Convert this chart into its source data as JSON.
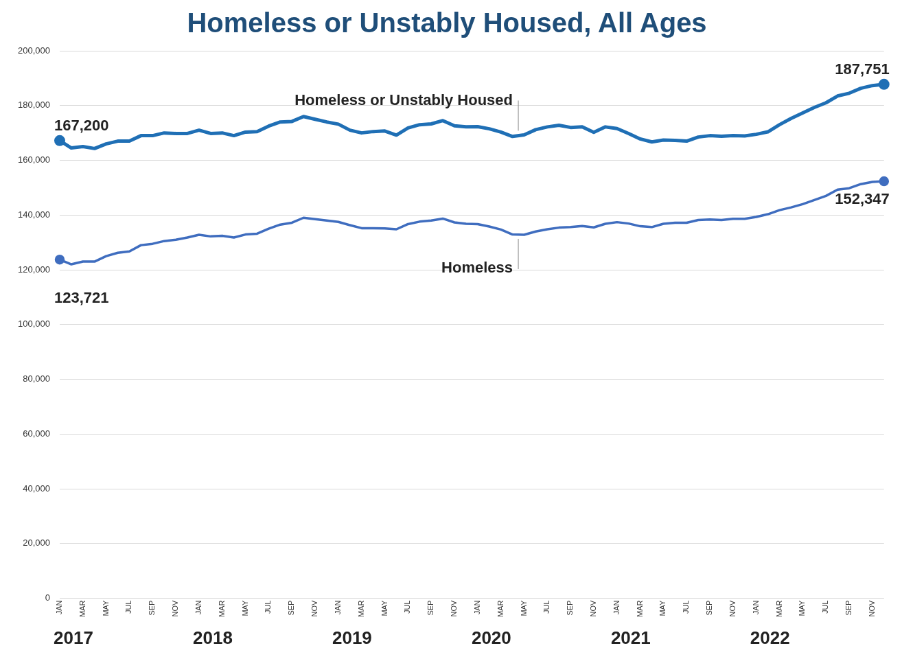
{
  "chart_data": {
    "type": "line",
    "title": "Homeless or Unstably Housed, All Ages",
    "categories": [
      "JAN",
      null,
      "MAR",
      null,
      "MAY",
      null,
      "JUL",
      null,
      "SEP",
      null,
      "NOV",
      null,
      "JAN",
      null,
      "MAR",
      null,
      "MAY",
      null,
      "JUL",
      null,
      "SEP",
      null,
      "NOV",
      null,
      "JAN",
      null,
      "MAR",
      null,
      "MAY",
      null,
      "JUL",
      null,
      "SEP",
      null,
      "NOV",
      null,
      "JAN",
      null,
      "MAR",
      null,
      "MAY",
      null,
      "JUL",
      null,
      "SEP",
      null,
      "NOV",
      null,
      "JAN",
      null,
      "MAR",
      null,
      "MAY",
      null,
      "JUL",
      null,
      "SEP",
      null,
      "NOV",
      null,
      "JAN",
      null,
      "MAR",
      null,
      "MAY",
      null,
      "JUL",
      null,
      "SEP",
      null,
      "NOV",
      null
    ],
    "series": [
      {
        "name": "Homeless or Unstably Housed",
        "color": "#1f6fb5",
        "values": [
          167200,
          164500,
          165000,
          164300,
          166000,
          167000,
          167000,
          169000,
          169000,
          170000,
          169800,
          169800,
          171000,
          169800,
          170000,
          169000,
          170300,
          170500,
          172500,
          174000,
          174200,
          176000,
          175000,
          174000,
          173200,
          171000,
          170000,
          170500,
          170700,
          169200,
          171800,
          173000,
          173300,
          174500,
          172600,
          172200,
          172300,
          171500,
          170300,
          168700,
          169300,
          171200,
          172200,
          172800,
          172000,
          172200,
          170200,
          172200,
          171600,
          169800,
          167800,
          166700,
          167400,
          167300,
          167000,
          168500,
          169000,
          168800,
          169000,
          168900,
          169500,
          170400,
          173000,
          175300,
          177300,
          179300,
          181000,
          183500,
          184500,
          186300,
          187300,
          187751
        ],
        "value_labels": [
          "167,200",
          null,
          null,
          null,
          null,
          null,
          null,
          null,
          null,
          null,
          null,
          null,
          null,
          null,
          null,
          null,
          null,
          null,
          null,
          null,
          null,
          null,
          null,
          null,
          null,
          null,
          null,
          null,
          null,
          null,
          null,
          null,
          null,
          null,
          null,
          null,
          null,
          null,
          null,
          null,
          null,
          null,
          null,
          null,
          null,
          null,
          null,
          null,
          null,
          null,
          null,
          null,
          null,
          null,
          null,
          null,
          null,
          null,
          null,
          null,
          null,
          null,
          null,
          null,
          null,
          null,
          null,
          null,
          null,
          null,
          null,
          "187,751"
        ]
      },
      {
        "name": "Homeless",
        "color": "#3f6dbf",
        "values": [
          123721,
          122000,
          123000,
          123000,
          125000,
          126200,
          126700,
          129000,
          129500,
          130500,
          131000,
          131800,
          132800,
          132200,
          132400,
          131800,
          132900,
          133200,
          135000,
          136500,
          137200,
          139000,
          138500,
          138000,
          137500,
          136300,
          135200,
          135200,
          135100,
          134800,
          136700,
          137600,
          138000,
          138700,
          137300,
          136800,
          136700,
          135800,
          134700,
          132900,
          132800,
          134000,
          134800,
          135400,
          135600,
          136000,
          135500,
          136800,
          137400,
          136900,
          135900,
          135600,
          136800,
          137200,
          137200,
          138200,
          138400,
          138200,
          138600,
          138600,
          139300,
          140300,
          141800,
          142800,
          144000,
          145500,
          147000,
          149300,
          149800,
          151300,
          152100,
          152347
        ],
        "value_labels": [
          "123,721",
          null,
          null,
          null,
          null,
          null,
          null,
          null,
          null,
          null,
          null,
          null,
          null,
          null,
          null,
          null,
          null,
          null,
          null,
          null,
          null,
          null,
          null,
          null,
          null,
          null,
          null,
          null,
          null,
          null,
          null,
          null,
          null,
          null,
          null,
          null,
          null,
          null,
          null,
          null,
          null,
          null,
          null,
          null,
          null,
          null,
          null,
          null,
          null,
          null,
          null,
          null,
          null,
          null,
          null,
          null,
          null,
          null,
          null,
          null,
          null,
          null,
          null,
          null,
          null,
          null,
          null,
          null,
          null,
          null,
          null,
          "152,347"
        ]
      }
    ],
    "ylim": [
      0,
      200000
    ],
    "yticks": [
      {
        "value": 0,
        "label": "0"
      },
      {
        "value": 20000,
        "label": "20,000"
      },
      {
        "value": 40000,
        "label": "40,000"
      },
      {
        "value": 60000,
        "label": "60,000"
      },
      {
        "value": 80000,
        "label": "80,000"
      },
      {
        "value": 100000,
        "label": "100,000"
      },
      {
        "value": 120000,
        "label": "120,000"
      },
      {
        "value": 140000,
        "label": "140,000"
      },
      {
        "value": 160000,
        "label": "160,000"
      },
      {
        "value": 180000,
        "label": "180,000"
      },
      {
        "value": 200000,
        "label": "200,000"
      }
    ],
    "grid": "y",
    "legend": false,
    "marker": "none",
    "line_style": "solid",
    "annotations": [
      "2017",
      "2018",
      "2019",
      "2020",
      "2021",
      "2022"
    ]
  }
}
